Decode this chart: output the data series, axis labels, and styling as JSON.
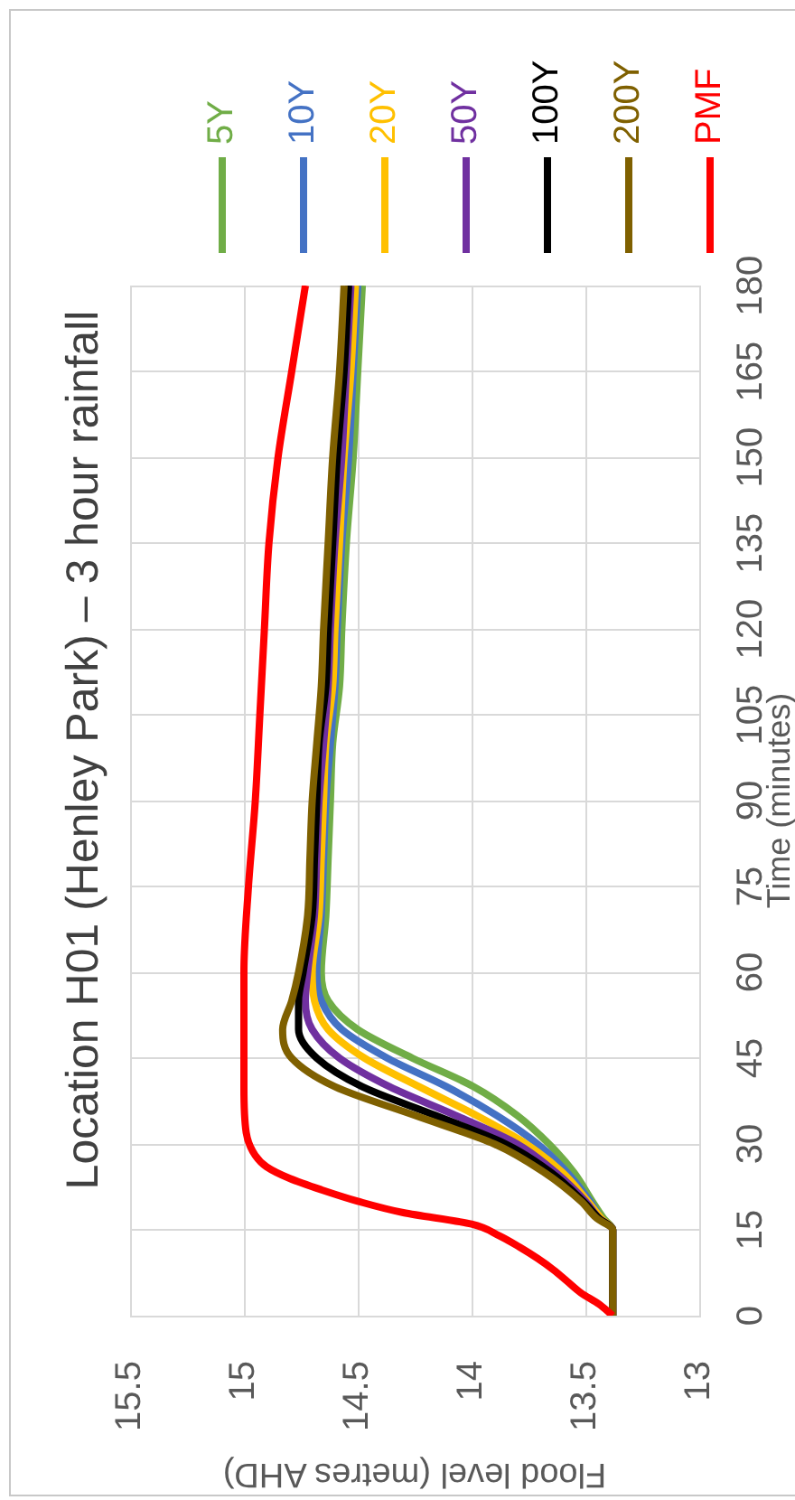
{
  "chart_data": {
    "type": "line",
    "title": "Location H01 (Henley Park) – 3 hour rainfall",
    "xlabel": "Flood level (metres AHD)",
    "ylabel": "Time (minutes)",
    "series": [
      {
        "name": "5Y",
        "color": "#70ad47",
        "x": [
          13.38,
          13.38,
          13.42,
          13.47,
          13.55,
          13.66,
          13.8,
          13.99,
          14.26,
          14.5,
          14.63,
          14.66,
          14.64,
          14.63,
          14.62,
          14.61,
          14.58,
          14.57,
          14.55,
          14.52,
          14.5,
          14.48
        ],
        "values": [
          0,
          15,
          17,
          20,
          25,
          30,
          35,
          40,
          45,
          50,
          55,
          60,
          70,
          80,
          90,
          100,
          110,
          120,
          135,
          150,
          165,
          180
        ]
      },
      {
        "name": "10Y",
        "color": "#4472c4",
        "x": [
          13.38,
          13.38,
          13.43,
          13.48,
          13.58,
          13.71,
          13.89,
          14.11,
          14.37,
          14.57,
          14.66,
          14.68,
          14.66,
          14.65,
          14.64,
          14.62,
          14.6,
          14.59,
          14.57,
          14.54,
          14.52,
          14.5
        ],
        "values": [
          0,
          15,
          17,
          20,
          25,
          30,
          35,
          40,
          45,
          50,
          55,
          60,
          70,
          80,
          90,
          100,
          110,
          120,
          135,
          150,
          165,
          180
        ]
      },
      {
        "name": "20Y",
        "color": "#ffc000",
        "x": [
          13.38,
          13.38,
          13.43,
          13.49,
          13.6,
          13.76,
          13.98,
          14.23,
          14.47,
          14.63,
          14.69,
          14.7,
          14.67,
          14.66,
          14.65,
          14.64,
          14.61,
          14.6,
          14.58,
          14.56,
          14.53,
          14.51
        ],
        "values": [
          0,
          15,
          17,
          20,
          25,
          30,
          35,
          40,
          45,
          50,
          55,
          60,
          70,
          80,
          90,
          100,
          110,
          120,
          135,
          150,
          165,
          180
        ]
      },
      {
        "name": "50Y",
        "color": "#7030a0",
        "x": [
          13.38,
          13.38,
          13.44,
          13.5,
          13.63,
          13.8,
          14.07,
          14.36,
          14.58,
          14.7,
          14.73,
          14.72,
          14.69,
          14.68,
          14.67,
          14.65,
          14.63,
          14.62,
          14.6,
          14.57,
          14.55,
          14.53
        ],
        "values": [
          0,
          15,
          17,
          20,
          25,
          30,
          35,
          40,
          45,
          50,
          55,
          60,
          70,
          80,
          90,
          100,
          110,
          120,
          135,
          150,
          165,
          180
        ]
      },
      {
        "name": "100Y",
        "color": "#000000",
        "x": [
          13.38,
          13.38,
          13.44,
          13.51,
          13.65,
          13.85,
          14.16,
          14.48,
          14.68,
          14.76,
          14.76,
          14.74,
          14.7,
          14.69,
          14.68,
          14.67,
          14.64,
          14.63,
          14.61,
          14.59,
          14.56,
          14.54
        ],
        "values": [
          0,
          15,
          17,
          20,
          25,
          30,
          35,
          40,
          45,
          50,
          55,
          60,
          70,
          80,
          90,
          100,
          110,
          120,
          135,
          150,
          165,
          180
        ]
      },
      {
        "name": "200Y",
        "color": "#7f6000",
        "x": [
          13.38,
          13.38,
          13.45,
          13.52,
          13.68,
          13.9,
          14.25,
          14.6,
          14.79,
          14.83,
          14.79,
          14.76,
          14.72,
          14.71,
          14.7,
          14.68,
          14.66,
          14.65,
          14.63,
          14.61,
          14.58,
          14.56
        ],
        "values": [
          0,
          15,
          17,
          20,
          25,
          30,
          35,
          40,
          45,
          50,
          55,
          60,
          70,
          80,
          90,
          100,
          110,
          120,
          135,
          150,
          165,
          180
        ]
      },
      {
        "name": "PMF",
        "color": "#ff0000",
        "x": [
          13.38,
          13.44,
          13.52,
          13.58,
          13.64,
          13.71,
          13.79,
          13.88,
          14.0,
          14.3,
          14.5,
          14.66,
          14.8,
          14.9,
          14.95,
          14.99,
          15.0,
          15.0,
          14.98,
          14.95,
          14.93,
          14.91,
          14.89,
          14.85,
          14.79,
          14.73
        ],
        "values": [
          0,
          2,
          4,
          6,
          8,
          10,
          12,
          14,
          16,
          18,
          20,
          22,
          24,
          26,
          28,
          32,
          40,
          60,
          75,
          90,
          105,
          120,
          135,
          150,
          165,
          180
        ]
      }
    ],
    "xlim": [
      15.5,
      13
    ],
    "xticks": [
      15.5,
      15,
      14.5,
      14,
      13.5,
      13
    ],
    "ylim": [
      0,
      180
    ],
    "yticks": [
      0,
      15,
      30,
      45,
      60,
      75,
      90,
      105,
      120,
      135,
      150,
      165,
      180
    ],
    "grid": true,
    "legend": "top"
  }
}
